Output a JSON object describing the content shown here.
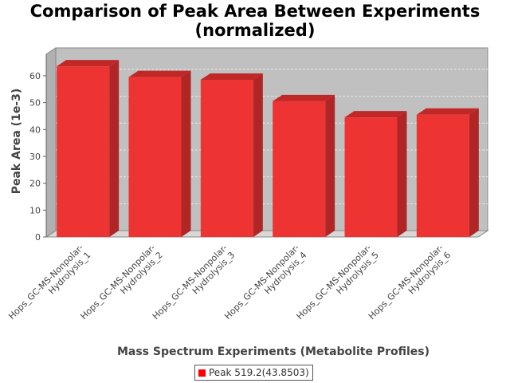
{
  "chart_data": {
    "type": "bar",
    "title_line1": "Comparison of Peak Area Between Experiments",
    "title_line2": "(normalized)",
    "xlabel": "Mass Spectrum Experiments (Metabolite Profiles)",
    "ylabel": "Peak Area (1e-3)",
    "categories": [
      [
        "Hops_GC-MS-Nonpolar-",
        "Hydrolysis_1"
      ],
      [
        "Hops_GC-MS-Nonpolar-",
        "Hydrolysis_2"
      ],
      [
        "Hops_GC-MS-Nonpolar-",
        "Hydrolysis_3"
      ],
      [
        "Hops_GC-MS-Nonpolar-",
        "Hydrolysis_4"
      ],
      [
        "Hops_GC-MS-Nonpolar-",
        "Hydrolysis_5"
      ],
      [
        "Hops_GC-MS-Nonpolar-",
        "Hydrolysis_6"
      ]
    ],
    "series": [
      {
        "name": "Peak 519.2(43.8503)",
        "values": [
          63.5,
          59.5,
          58.5,
          50.5,
          44.5,
          45.5
        ],
        "color": "#ff0000"
      }
    ],
    "ylim": [
      0,
      68
    ],
    "yticks": [
      0,
      10,
      20,
      30,
      40,
      50,
      60
    ],
    "grid": true,
    "legend_position": "bottom",
    "colors": {
      "plot_background": "#c0c0c0",
      "bar": "#ee3333",
      "grid": "#e8e8e8"
    }
  }
}
